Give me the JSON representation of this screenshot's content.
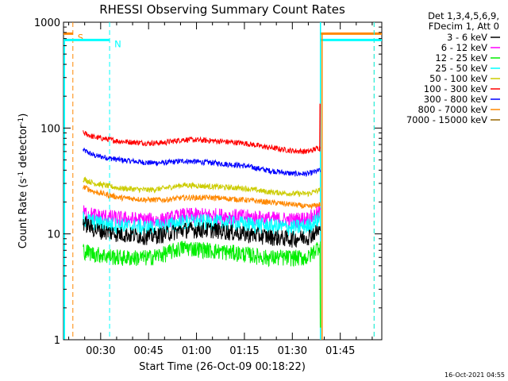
{
  "chart_data": {
    "type": "line",
    "title": "RHESSI Observing Summary Count Rates",
    "xlabel": "Start Time (26-Oct-09 00:18:22)",
    "ylabel_main": "Count Rate (s",
    "ylabel_sup1": "-1",
    "ylabel_mid": " detector",
    "ylabel_sup2": "-1",
    "ylabel_end": ")",
    "y_scale": "log",
    "ylim": [
      1,
      1000
    ],
    "y_ticks": [
      {
        "value": 1,
        "label": "1"
      },
      {
        "value": 10,
        "label": "10"
      },
      {
        "value": 100,
        "label": "100"
      },
      {
        "value": 1000,
        "label": "1000"
      }
    ],
    "xlim_minutes": [
      18.37,
      118.0
    ],
    "x_ticks": [
      {
        "minute": 30,
        "label": "00:30"
      },
      {
        "minute": 45,
        "label": "00:45"
      },
      {
        "minute": 60,
        "label": "01:00"
      },
      {
        "minute": 75,
        "label": "01:15"
      },
      {
        "minute": 90,
        "label": "01:30"
      },
      {
        "minute": 105,
        "label": "01:45"
      }
    ],
    "legend": {
      "header_line1": "Det 1,3,4,5,6,9,",
      "header_line2": "FDecim 1, Att 0",
      "placement": "right, outside plot"
    },
    "series": [
      {
        "name": "3 - 6 keV",
        "color": "#000000",
        "x": [
          24.5,
          28,
          36,
          45,
          50,
          56,
          65,
          75,
          82,
          90,
          95,
          98.8
        ],
        "y": [
          13,
          11,
          10,
          9.5,
          10,
          11,
          11,
          10,
          9.5,
          9,
          9.5,
          11
        ]
      },
      {
        "name": "6 - 12 keV",
        "color": "#ff00ff",
        "x": [
          24.5,
          28,
          36,
          45,
          50,
          56,
          65,
          75,
          82,
          90,
          95,
          98.8
        ],
        "y": [
          16,
          15,
          14,
          13.5,
          13.5,
          15,
          15,
          14.5,
          14,
          13.5,
          14,
          16
        ]
      },
      {
        "name": "12 - 25 keV",
        "color": "#00ee00",
        "x": [
          24.5,
          28,
          36,
          45,
          50,
          56,
          65,
          75,
          82,
          90,
          95,
          98.8
        ],
        "y": [
          7,
          6.5,
          6,
          6,
          6.5,
          7.5,
          7,
          6.5,
          6,
          6,
          6,
          8
        ]
      },
      {
        "name": "25 - 50 keV",
        "color": "#00ffff",
        "x": [
          24.5,
          28,
          36,
          45,
          50,
          56,
          65,
          75,
          82,
          90,
          95,
          98.8
        ],
        "y": [
          14,
          13,
          12,
          11.5,
          12,
          13,
          13,
          12.5,
          12,
          11.5,
          12,
          14
        ]
      },
      {
        "name": "50 - 100 keV",
        "color": "#cccc00",
        "x": [
          24.5,
          28,
          36,
          45,
          50,
          56,
          65,
          75,
          82,
          90,
          95,
          98.8
        ],
        "y": [
          33,
          30,
          27,
          26,
          27,
          29,
          28,
          27,
          25,
          24,
          24,
          26
        ]
      },
      {
        "name": "100 - 300 keV",
        "color": "#ff0000",
        "x": [
          24.5,
          28,
          36,
          45,
          50,
          56,
          65,
          75,
          82,
          90,
          95,
          98.8
        ],
        "y": [
          90,
          82,
          75,
          72,
          73,
          78,
          76,
          72,
          66,
          61,
          60,
          66
        ]
      },
      {
        "name": "300 - 800 keV",
        "color": "#0000ff",
        "x": [
          24.5,
          28,
          36,
          45,
          50,
          56,
          65,
          75,
          82,
          90,
          95,
          98.8
        ],
        "y": [
          62,
          55,
          50,
          47,
          47,
          49,
          47,
          44,
          40,
          37,
          37,
          40
        ]
      },
      {
        "name": "800 - 7000 keV",
        "color": "#ff8800",
        "x": [
          24.5,
          28,
          36,
          45,
          50,
          56,
          65,
          75,
          82,
          90,
          95,
          98.8
        ],
        "y": [
          28,
          25,
          22,
          21,
          21,
          22,
          22,
          21,
          20,
          19,
          18,
          19
        ]
      },
      {
        "name": "7000 - 15000 keV",
        "color": "#996600",
        "x": [],
        "y": []
      }
    ],
    "markers": [
      {
        "label": "S",
        "color": "#ff8800",
        "minute": 21.3,
        "level": 780,
        "style": "dashed"
      },
      {
        "label": "N",
        "color": "#00ffff",
        "minute": 32.8,
        "level": 680,
        "style": "dashed"
      }
    ],
    "footer_stamp": "16-Oct-2021 04:55"
  }
}
